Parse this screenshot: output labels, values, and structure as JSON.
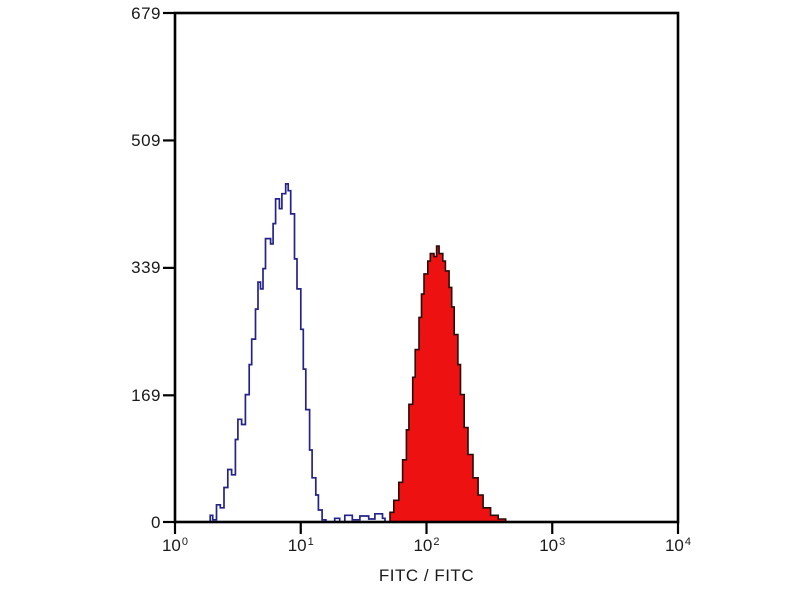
{
  "chart_data": {
    "type": "area",
    "chart_kind": "flow-cytometry-histogram-overlay",
    "title": "",
    "xlabel": "FITC / FITC",
    "ylabel": "",
    "grid": false,
    "legend": "none",
    "x_axis": {
      "scale": "log10",
      "tick_base": "10",
      "min_exponent": 0,
      "max_exponent": 4,
      "tick_exponents": [
        0,
        1,
        2,
        3,
        4
      ]
    },
    "y_axis": {
      "min": 0,
      "max": 679,
      "ticks": [
        0,
        169,
        339,
        509,
        679
      ]
    },
    "colors": {
      "axis": "#000000",
      "background": "#ffffff",
      "text": "#1a1a1a",
      "blue_line": "#23238b",
      "red_fill": "#ee1111",
      "red_outline": "#2b0b08"
    },
    "series": [
      {
        "name": "open-outline-control",
        "style": "open",
        "line_color": "#23238b",
        "fill": "none",
        "peak_x_value": 7.8,
        "peak_count": 451,
        "points_log10x_count": [
          [
            0.25,
            0
          ],
          [
            0.28,
            9
          ],
          [
            0.3,
            3
          ],
          [
            0.33,
            23
          ],
          [
            0.36,
            19
          ],
          [
            0.39,
            46
          ],
          [
            0.42,
            70
          ],
          [
            0.45,
            63
          ],
          [
            0.48,
            110
          ],
          [
            0.5,
            137
          ],
          [
            0.53,
            130
          ],
          [
            0.56,
            170
          ],
          [
            0.59,
            210
          ],
          [
            0.61,
            244
          ],
          [
            0.64,
            284
          ],
          [
            0.66,
            320
          ],
          [
            0.68,
            311
          ],
          [
            0.7,
            338
          ],
          [
            0.72,
            378
          ],
          [
            0.76,
            371
          ],
          [
            0.78,
            398
          ],
          [
            0.8,
            431
          ],
          [
            0.83,
            418
          ],
          [
            0.85,
            438
          ],
          [
            0.88,
            451
          ],
          [
            0.9,
            442
          ],
          [
            0.92,
            411
          ],
          [
            0.95,
            351
          ],
          [
            0.97,
            311
          ],
          [
            1.0,
            257
          ],
          [
            1.02,
            204
          ],
          [
            1.04,
            150
          ],
          [
            1.07,
            96
          ],
          [
            1.09,
            59
          ],
          [
            1.12,
            36
          ],
          [
            1.14,
            16
          ],
          [
            1.17,
            3
          ],
          [
            1.2,
            0
          ],
          [
            1.27,
            5
          ],
          [
            1.31,
            0
          ],
          [
            1.35,
            9
          ],
          [
            1.41,
            3
          ],
          [
            1.47,
            8
          ],
          [
            1.54,
            4
          ],
          [
            1.59,
            11
          ],
          [
            1.65,
            5
          ],
          [
            1.67,
            0
          ]
        ]
      },
      {
        "name": "red-filled-sample",
        "style": "filled",
        "line_color": "#2b0b08",
        "fill": "#ee1111",
        "peak_x_value": 120,
        "peak_count": 368,
        "points_log10x_count": [
          [
            1.67,
            0
          ],
          [
            1.71,
            13
          ],
          [
            1.74,
            29
          ],
          [
            1.78,
            53
          ],
          [
            1.81,
            83
          ],
          [
            1.84,
            123
          ],
          [
            1.86,
            157
          ],
          [
            1.89,
            193
          ],
          [
            1.91,
            230
          ],
          [
            1.94,
            273
          ],
          [
            1.96,
            304
          ],
          [
            1.98,
            331
          ],
          [
            2.01,
            348
          ],
          [
            2.03,
            358
          ],
          [
            2.06,
            354
          ],
          [
            2.08,
            368
          ],
          [
            2.1,
            358
          ],
          [
            2.13,
            348
          ],
          [
            2.15,
            335
          ],
          [
            2.18,
            313
          ],
          [
            2.2,
            287
          ],
          [
            2.22,
            250
          ],
          [
            2.25,
            210
          ],
          [
            2.27,
            170
          ],
          [
            2.3,
            126
          ],
          [
            2.33,
            90
          ],
          [
            2.37,
            59
          ],
          [
            2.41,
            36
          ],
          [
            2.45,
            19
          ],
          [
            2.51,
            9
          ],
          [
            2.57,
            4
          ],
          [
            2.63,
            0
          ]
        ]
      }
    ]
  }
}
